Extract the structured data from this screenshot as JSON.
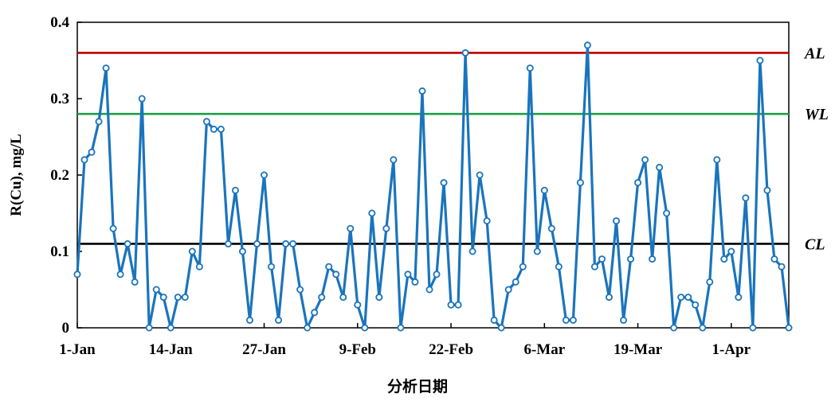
{
  "chart_data": {
    "type": "line",
    "title": "",
    "xlabel": "分析日期",
    "ylabel": "R(Cu), mg/L",
    "ylim": [
      0,
      0.4
    ],
    "yticks": [
      "0",
      "0.1",
      "0.2",
      "0.3",
      "0.4"
    ],
    "x_tick_labels": [
      "1-Jan",
      "14-Jan",
      "27-Jan",
      "9-Feb",
      "22-Feb",
      "6-Mar",
      "19-Mar",
      "1-Apr"
    ],
    "grid": false,
    "series_color": "#1a74bd",
    "reference_lines": [
      {
        "label": "AL",
        "value": 0.36,
        "color": "#c00000"
      },
      {
        "label": "WL",
        "value": 0.28,
        "color": "#1e9e48"
      },
      {
        "label": "CL",
        "value": 0.11,
        "color": "#000000"
      }
    ],
    "values": [
      0.07,
      0.22,
      0.23,
      0.27,
      0.34,
      0.13,
      0.07,
      0.11,
      0.06,
      0.3,
      0,
      0.05,
      0.04,
      0,
      0.04,
      0.04,
      0.1,
      0.08,
      0.27,
      0.26,
      0.26,
      0.11,
      0.18,
      0.1,
      0.01,
      0.11,
      0.2,
      0.08,
      0.01,
      0.11,
      0.11,
      0.05,
      0,
      0.02,
      0.04,
      0.08,
      0.07,
      0.04,
      0.13,
      0.03,
      0,
      0.15,
      0.04,
      0.13,
      0.22,
      0,
      0.07,
      0.06,
      0.31,
      0.05,
      0.07,
      0.19,
      0.03,
      0.03,
      0.36,
      0.1,
      0.2,
      0.14,
      0.01,
      0,
      0.05,
      0.06,
      0.08,
      0.34,
      0.1,
      0.18,
      0.13,
      0.08,
      0.01,
      0.01,
      0.19,
      0.37,
      0.08,
      0.09,
      0.04,
      0.14,
      0.01,
      0.09,
      0.19,
      0.22,
      0.09,
      0.21,
      0.15,
      0,
      0.04,
      0.04,
      0.03,
      0,
      0.06,
      0.22,
      0.09,
      0.1,
      0.04,
      0.17,
      0,
      0.35,
      0.18,
      0.09,
      0.08,
      0
    ]
  }
}
